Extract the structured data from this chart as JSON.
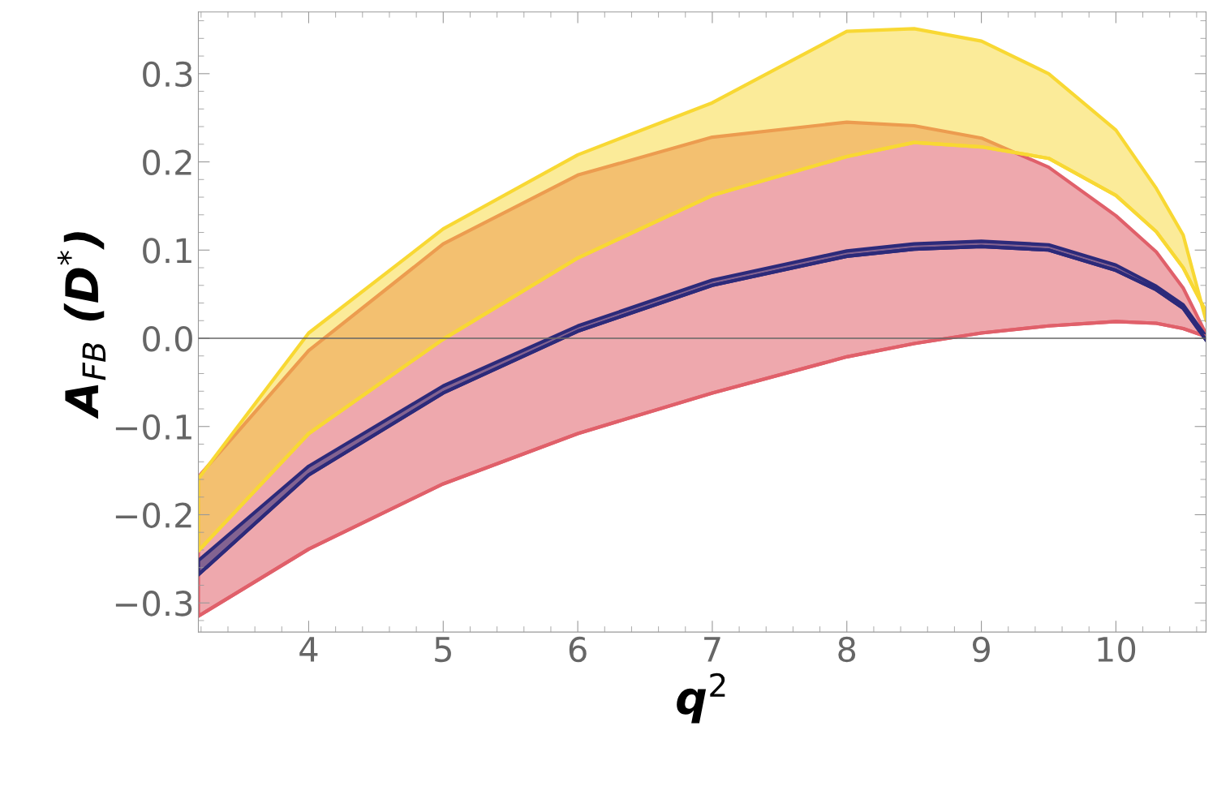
{
  "chart_data": {
    "type": "line",
    "xlabel": "q$^{2}$",
    "ylabel": "A$_{FB}$ (D$^{*}$)",
    "x": [
      3.18,
      4,
      5,
      6,
      7,
      8,
      8.5,
      9,
      9.5,
      10,
      10.3,
      10.5,
      10.67
    ],
    "series": [
      {
        "color": "#e0606a",
        "values": [
          -0.315,
          -0.239,
          -0.165,
          -0.108,
          -0.062,
          -0.021,
          -0.006,
          0.006,
          0.014,
          0.019,
          0.017,
          0.011,
          0.002
        ],
        "lower": [
          -0.315,
          -0.239,
          -0.165,
          -0.108,
          -0.062,
          -0.021,
          -0.006,
          0.006,
          0.014,
          0.019,
          0.017,
          0.011,
          0.002
        ],
        "upper": [
          -0.157,
          -0.014,
          0.107,
          0.185,
          0.228,
          0.245,
          0.241,
          0.227,
          0.194,
          0.139,
          0.098,
          0.057,
          0.005
        ]
      },
      {
        "color": "#f8d833",
        "values": [
          -0.241,
          -0.108,
          -0.001,
          0.091,
          0.162,
          0.206,
          0.222,
          0.217,
          0.204,
          0.162,
          0.121,
          0.08,
          0.03
        ],
        "lower": [
          -0.241,
          -0.108,
          -0.001,
          0.091,
          0.162,
          0.206,
          0.222,
          0.217,
          0.204,
          0.162,
          0.121,
          0.08,
          0.03
        ],
        "upper": [
          -0.159,
          0.006,
          0.124,
          0.208,
          0.267,
          0.348,
          0.351,
          0.337,
          0.3,
          0.236,
          0.17,
          0.117,
          0.02
        ]
      },
      {
        "color": "#2c2a7a",
        "values": [
          -0.268,
          -0.155,
          -0.062,
          0.008,
          0.06,
          0.093,
          0.101,
          0.104,
          0.1,
          0.077,
          0.055,
          0.034,
          -0.002
        ],
        "lower": [
          -0.268,
          -0.155,
          -0.062,
          0.008,
          0.06,
          0.093,
          0.101,
          0.104,
          0.1,
          0.077,
          0.055,
          0.034,
          -0.002
        ],
        "upper": [
          -0.252,
          -0.145,
          -0.054,
          0.014,
          0.066,
          0.099,
          0.107,
          0.11,
          0.106,
          0.083,
          0.059,
          0.038,
          0.002
        ]
      }
    ],
    "xlim": [
      3.18,
      10.67
    ],
    "ylim": [
      -0.333,
      0.37
    ],
    "xticks": [
      4,
      5,
      6,
      7,
      8,
      9,
      10
    ],
    "yticks": [
      {
        "value": -0.3,
        "label": "−0.3"
      },
      {
        "value": -0.2,
        "label": "−0.2"
      },
      {
        "value": -0.1,
        "label": "−0.1"
      },
      {
        "value": 0,
        "label": "0.0"
      },
      {
        "value": 0.1,
        "label": "0.1"
      },
      {
        "value": 0.2,
        "label": "0.2"
      },
      {
        "value": 0.3,
        "label": "0.3"
      }
    ],
    "ref_lines": [
      {
        "axis": "y",
        "value": 0,
        "color": "#666666"
      }
    ],
    "grid": false,
    "legend": false
  }
}
